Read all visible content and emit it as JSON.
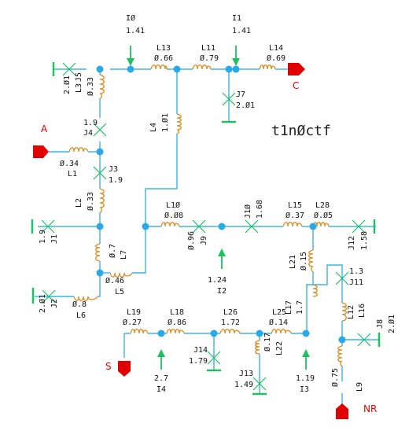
{
  "title": "t1nØctf",
  "ports": {
    "A": "A",
    "C": "C",
    "S": "S",
    "NR": "NR"
  },
  "inductors": {
    "L1": {
      "name": "L1",
      "value": "Ø.34"
    },
    "L2": {
      "name": "L2",
      "value": "Ø.33"
    },
    "L3": {
      "name": "L3",
      "value": "Ø.33"
    },
    "L4": {
      "name": "L4",
      "value": "1.Ø1"
    },
    "L5": {
      "name": "L5",
      "value": "Ø.46"
    },
    "L6": {
      "name": "L6",
      "value": "Ø.8"
    },
    "L7": {
      "name": "L7",
      "value": "Ø.7"
    },
    "L9": {
      "name": "L9",
      "value": "Ø.75"
    },
    "L10": {
      "name": "L1Ø",
      "value": "Ø.Ø8"
    },
    "L11": {
      "name": "L11",
      "value": "Ø.79"
    },
    "L12": {
      "name": "L12",
      "value": ""
    },
    "L13": {
      "name": "L13",
      "value": "Ø.66"
    },
    "L14": {
      "name": "L14",
      "value": "Ø.69"
    },
    "L15": {
      "name": "L15",
      "value": "Ø.37"
    },
    "L16": {
      "name": "L16",
      "value": ""
    },
    "L17": {
      "name": "L17",
      "value": "1.7"
    },
    "L18": {
      "name": "L18",
      "value": "Ø.86"
    },
    "L19": {
      "name": "L19",
      "value": "Ø.27"
    },
    "L21": {
      "name": "L21",
      "value": "Ø.15"
    },
    "L22": {
      "name": "L22",
      "value": "Ø.17"
    },
    "L25": {
      "name": "L25",
      "value": "Ø.14"
    },
    "L26": {
      "name": "L26",
      "value": "1.72"
    },
    "L28": {
      "name": "L28",
      "value": "Ø.Ø5"
    }
  },
  "sources": {
    "I0": {
      "name": "IØ",
      "value": "1.41"
    },
    "I1": {
      "name": "I1",
      "value": "1.41"
    },
    "I2": {
      "name": "I2",
      "value": "1.24"
    },
    "I3": {
      "name": "I3",
      "value": "1.19"
    },
    "I4": {
      "name": "I4",
      "value": "2.7"
    }
  },
  "junctions": {
    "J1": {
      "name": "J1",
      "value": "1.9"
    },
    "J2": {
      "name": "J2",
      "value": "2.Ø1"
    },
    "J3": {
      "name": "J3",
      "value": "1.9"
    },
    "J4": {
      "name": "J4",
      "value": "1.9"
    },
    "J5": {
      "name": "J5",
      "value": "2.Ø1"
    },
    "J7": {
      "name": "J7",
      "value": "2.Ø1"
    },
    "J8": {
      "name": "J8",
      "value": "2.Ø1"
    },
    "J9": {
      "name": "J9",
      "value": "Ø.96"
    },
    "J10": {
      "name": "J1Ø",
      "value": "1.68"
    },
    "J11": {
      "name": "J11",
      "value": "1.3"
    },
    "J12": {
      "name": "J12",
      "value": "1.58"
    },
    "J13": {
      "name": "J13",
      "value": "1.49"
    },
    "J14": {
      "name": "J14",
      "value": "1.79"
    }
  }
}
